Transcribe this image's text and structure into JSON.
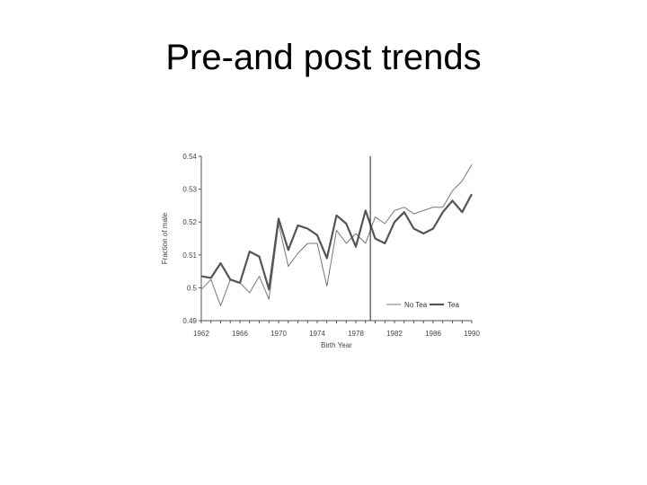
{
  "slide": {
    "title": "Pre-and post trends"
  },
  "chart_data": {
    "type": "line",
    "xlabel": "Birth Year",
    "ylabel": "Fraction of male",
    "xlim": [
      1962,
      1990
    ],
    "ylim": [
      0.49,
      0.54
    ],
    "x_ticks": [
      "1962",
      "1966",
      "1970",
      "1974",
      "1978",
      "1982",
      "1986",
      "1990"
    ],
    "y_ticks": [
      "0.49",
      "0.5",
      "0.51",
      "0.52",
      "0.53",
      "0.54"
    ],
    "vertical_line_x": 1979.5,
    "legend_position": "bottom-right",
    "x": [
      1962,
      1963,
      1964,
      1965,
      1966,
      1967,
      1968,
      1969,
      1970,
      1971,
      1972,
      1973,
      1974,
      1975,
      1976,
      1977,
      1978,
      1979,
      1980,
      1981,
      1982,
      1983,
      1984,
      1985,
      1986,
      1987,
      1988,
      1989,
      1990
    ],
    "series": [
      {
        "name": "No Tea",
        "color": "#777777",
        "values": [
          0.4995,
          0.5025,
          0.4945,
          0.5025,
          0.5015,
          0.4985,
          0.5035,
          0.4965,
          0.5195,
          0.5065,
          0.5105,
          0.5135,
          0.5135,
          0.5005,
          0.5175,
          0.5135,
          0.5165,
          0.5135,
          0.5215,
          0.5195,
          0.5235,
          0.5245,
          0.5225,
          0.5235,
          0.5245,
          0.5245,
          0.5295,
          0.5325,
          0.5375
        ]
      },
      {
        "name": "Tea",
        "color": "#555555",
        "values": [
          0.5035,
          0.503,
          0.5075,
          0.5025,
          0.5015,
          0.511,
          0.5095,
          0.4995,
          0.521,
          0.5115,
          0.519,
          0.518,
          0.516,
          0.509,
          0.522,
          0.5195,
          0.5125,
          0.5235,
          0.515,
          0.5135,
          0.52,
          0.523,
          0.518,
          0.5165,
          0.518,
          0.523,
          0.5265,
          0.523,
          0.5285
        ]
      }
    ]
  }
}
